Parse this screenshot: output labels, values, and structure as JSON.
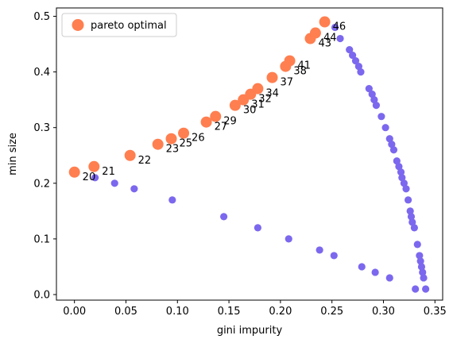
{
  "chart_data": {
    "type": "scatter",
    "xlabel": "gini impurity",
    "ylabel": "min size",
    "xlim": [
      -0.0175,
      0.3575
    ],
    "ylim": [
      -0.01,
      0.515
    ],
    "xticks": [
      "0.00",
      "0.05",
      "0.10",
      "0.15",
      "0.20",
      "0.25",
      "0.30",
      "0.35"
    ],
    "yticks": [
      "0.0",
      "0.1",
      "0.2",
      "0.3",
      "0.4",
      "0.5"
    ],
    "legend": {
      "position": "upper-left",
      "entries": [
        "pareto optimal"
      ]
    },
    "grid": false,
    "colors": {
      "points": "#7b68ee",
      "pareto": "#ff7f50"
    },
    "series": [
      {
        "kind": "all-points",
        "points": [
          [
            0.0,
            0.22
          ],
          [
            0.019,
            0.23
          ],
          [
            0.02,
            0.21
          ],
          [
            0.039,
            0.2
          ],
          [
            0.054,
            0.25
          ],
          [
            0.058,
            0.19
          ],
          [
            0.081,
            0.27
          ],
          [
            0.094,
            0.28
          ],
          [
            0.095,
            0.17
          ],
          [
            0.106,
            0.29
          ],
          [
            0.128,
            0.31
          ],
          [
            0.137,
            0.32
          ],
          [
            0.145,
            0.14
          ],
          [
            0.156,
            0.34
          ],
          [
            0.164,
            0.35
          ],
          [
            0.171,
            0.36
          ],
          [
            0.178,
            0.37
          ],
          [
            0.178,
            0.12
          ],
          [
            0.192,
            0.39
          ],
          [
            0.205,
            0.41
          ],
          [
            0.209,
            0.42
          ],
          [
            0.208,
            0.1
          ],
          [
            0.229,
            0.46
          ],
          [
            0.234,
            0.47
          ],
          [
            0.238,
            0.08
          ],
          [
            0.243,
            0.49
          ],
          [
            0.252,
            0.07
          ],
          [
            0.253,
            0.48
          ],
          [
            0.258,
            0.46
          ],
          [
            0.267,
            0.44
          ],
          [
            0.27,
            0.43
          ],
          [
            0.273,
            0.42
          ],
          [
            0.276,
            0.41
          ],
          [
            0.278,
            0.4
          ],
          [
            0.279,
            0.05
          ],
          [
            0.286,
            0.37
          ],
          [
            0.289,
            0.36
          ],
          [
            0.291,
            0.35
          ],
          [
            0.293,
            0.34
          ],
          [
            0.292,
            0.04
          ],
          [
            0.298,
            0.32
          ],
          [
            0.302,
            0.3
          ],
          [
            0.306,
            0.28
          ],
          [
            0.306,
            0.03
          ],
          [
            0.308,
            0.27
          ],
          [
            0.31,
            0.26
          ],
          [
            0.313,
            0.24
          ],
          [
            0.315,
            0.23
          ],
          [
            0.317,
            0.22
          ],
          [
            0.318,
            0.21
          ],
          [
            0.32,
            0.2
          ],
          [
            0.322,
            0.19
          ],
          [
            0.324,
            0.17
          ],
          [
            0.326,
            0.15
          ],
          [
            0.327,
            0.14
          ],
          [
            0.328,
            0.13
          ],
          [
            0.33,
            0.12
          ],
          [
            0.331,
            0.01
          ],
          [
            0.333,
            0.09
          ],
          [
            0.335,
            0.07
          ],
          [
            0.336,
            0.06
          ],
          [
            0.337,
            0.05
          ],
          [
            0.338,
            0.04
          ],
          [
            0.339,
            0.03
          ],
          [
            0.341,
            0.01
          ]
        ]
      },
      {
        "kind": "pareto",
        "name": "pareto optimal",
        "points": [
          {
            "x": 0.0,
            "y": 0.22,
            "label": "20"
          },
          {
            "x": 0.019,
            "y": 0.23,
            "label": "21"
          },
          {
            "x": 0.054,
            "y": 0.25,
            "label": "22"
          },
          {
            "x": 0.081,
            "y": 0.27,
            "label": "23"
          },
          {
            "x": 0.094,
            "y": 0.28,
            "label": "25"
          },
          {
            "x": 0.106,
            "y": 0.29,
            "label": "26"
          },
          {
            "x": 0.128,
            "y": 0.31,
            "label": "27"
          },
          {
            "x": 0.137,
            "y": 0.32,
            "label": "29"
          },
          {
            "x": 0.156,
            "y": 0.34,
            "label": "30"
          },
          {
            "x": 0.164,
            "y": 0.35,
            "label": "31"
          },
          {
            "x": 0.171,
            "y": 0.36,
            "label": "32"
          },
          {
            "x": 0.178,
            "y": 0.37,
            "label": "34"
          },
          {
            "x": 0.192,
            "y": 0.39,
            "label": "37"
          },
          {
            "x": 0.205,
            "y": 0.41,
            "label": "38"
          },
          {
            "x": 0.209,
            "y": 0.42,
            "label": "41"
          },
          {
            "x": 0.229,
            "y": 0.46,
            "label": "43"
          },
          {
            "x": 0.234,
            "y": 0.47,
            "label": "44"
          },
          {
            "x": 0.243,
            "y": 0.49,
            "label": "46"
          }
        ]
      }
    ]
  }
}
